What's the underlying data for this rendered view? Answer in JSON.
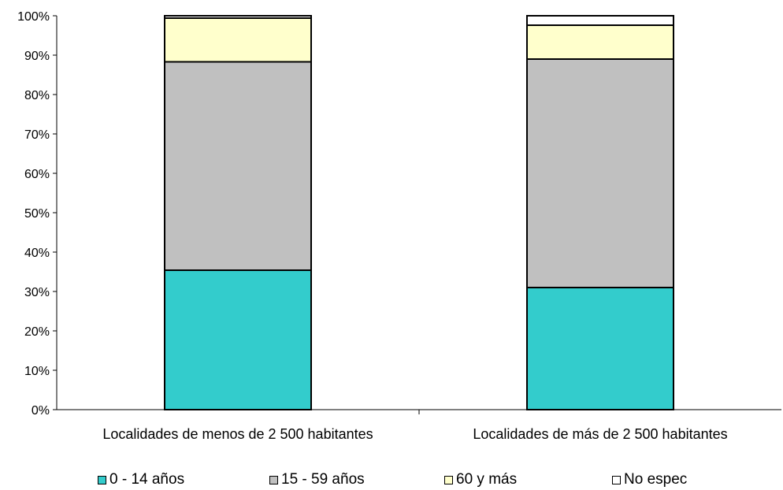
{
  "chart_data": {
    "type": "bar",
    "stacked": true,
    "percent": true,
    "categories": [
      "Localidades de menos de 2 500 habitantes",
      "Localidades de más de 2 500 habitantes"
    ],
    "series": [
      {
        "name": "0 - 14 años",
        "color": "#33CCCC",
        "values": [
          35.4,
          31.0
        ]
      },
      {
        "name": "15 - 59 años",
        "color": "#C0C0C0",
        "values": [
          52.9,
          58.0
        ]
      },
      {
        "name": "60 y más",
        "color": "#FFFFCC",
        "values": [
          11.1,
          8.6
        ]
      },
      {
        "name": "No espec",
        "color": "#FFFFFF",
        "values": [
          0.6,
          2.4
        ]
      }
    ],
    "ylim": [
      0,
      100
    ],
    "yticks": [
      "0%",
      "10%",
      "20%",
      "30%",
      "40%",
      "50%",
      "60%",
      "70%",
      "80%",
      "90%",
      "100%"
    ],
    "grid": false,
    "legend_position": "bottom"
  }
}
